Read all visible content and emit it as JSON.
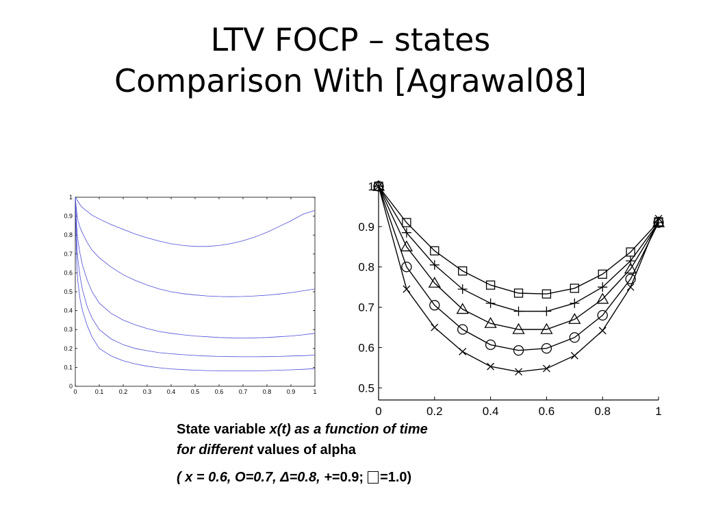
{
  "slide": {
    "title_line1": "LTV FOCP – states",
    "title_line2": "Comparison With [Agrawal08]"
  },
  "caption": {
    "line1_normal": "State variable ",
    "line1_italic": "x(t) as a function of time",
    "line2_italic": "for different",
    "line2_normal": " values of alpha",
    "line3_italic": "( x = 0.6,  O=0.7, Δ=0.8, +",
    "line3_plus_value": "=0.9;",
    "line3_square_value": "=1.0)"
  },
  "chart_data": [
    {
      "type": "line",
      "title": "",
      "xlabel": "",
      "ylabel": "",
      "xlim": [
        0,
        1
      ],
      "ylim": [
        0,
        1
      ],
      "xticks": [
        "0",
        "0.1",
        "0.2",
        "0.3",
        "0.4",
        "0.5",
        "0.6",
        "0.7",
        "0.8",
        "0.9",
        "1"
      ],
      "yticks": [
        "0",
        "0.1",
        "0.2",
        "0.3",
        "0.4",
        "0.5",
        "0.6",
        "0.7",
        "0.8",
        "0.9",
        "1"
      ],
      "grid": false,
      "line_color": "#4a4ad8",
      "x": [
        0,
        0.005,
        0.01,
        0.02,
        0.03,
        0.05,
        0.07,
        0.1,
        0.15,
        0.2,
        0.25,
        0.3,
        0.35,
        0.4,
        0.45,
        0.5,
        0.55,
        0.6,
        0.65,
        0.7,
        0.75,
        0.8,
        0.85,
        0.9,
        0.95,
        1.0
      ],
      "series": [
        {
          "values": [
            1.0,
            0.99,
            0.98,
            0.96,
            0.945,
            0.925,
            0.905,
            0.885,
            0.855,
            0.83,
            0.805,
            0.785,
            0.768,
            0.754,
            0.745,
            0.74,
            0.74,
            0.745,
            0.755,
            0.77,
            0.79,
            0.815,
            0.845,
            0.875,
            0.91,
            0.93
          ]
        },
        {
          "values": [
            1.0,
            0.93,
            0.88,
            0.84,
            0.81,
            0.76,
            0.72,
            0.68,
            0.63,
            0.59,
            0.56,
            0.535,
            0.515,
            0.5,
            0.49,
            0.483,
            0.478,
            0.475,
            0.474,
            0.475,
            0.478,
            0.482,
            0.488,
            0.495,
            0.505,
            0.515
          ]
        },
        {
          "values": [
            1.0,
            0.86,
            0.78,
            0.7,
            0.64,
            0.56,
            0.5,
            0.44,
            0.385,
            0.35,
            0.325,
            0.305,
            0.29,
            0.28,
            0.272,
            0.266,
            0.262,
            0.258,
            0.256,
            0.255,
            0.256,
            0.258,
            0.262,
            0.266,
            0.272,
            0.28
          ]
        },
        {
          "values": [
            1.0,
            0.78,
            0.68,
            0.58,
            0.51,
            0.42,
            0.36,
            0.3,
            0.25,
            0.22,
            0.2,
            0.188,
            0.178,
            0.172,
            0.167,
            0.163,
            0.16,
            0.158,
            0.157,
            0.156,
            0.156,
            0.157,
            0.158,
            0.16,
            0.162,
            0.165
          ]
        },
        {
          "values": [
            1.0,
            0.68,
            0.56,
            0.46,
            0.4,
            0.32,
            0.26,
            0.2,
            0.16,
            0.135,
            0.118,
            0.106,
            0.098,
            0.092,
            0.088,
            0.085,
            0.083,
            0.082,
            0.081,
            0.081,
            0.082,
            0.083,
            0.085,
            0.087,
            0.09,
            0.093
          ]
        }
      ]
    },
    {
      "type": "line",
      "title": "",
      "xlabel": "",
      "ylabel": "",
      "xlim": [
        0,
        1
      ],
      "ylim": [
        0.47,
        1.0
      ],
      "xticks": [
        "0",
        "0.2",
        "0.4",
        "0.6",
        "0.8",
        "1"
      ],
      "yticks": [
        "0.5",
        "0.6",
        "0.7",
        "0.8",
        "0.9",
        "1"
      ],
      "grid": false,
      "x": [
        0,
        0.1,
        0.2,
        0.3,
        0.4,
        0.5,
        0.6,
        0.7,
        0.8,
        0.9,
        1.0
      ],
      "series": [
        {
          "marker": "square",
          "values": [
            1.0,
            0.91,
            0.84,
            0.79,
            0.755,
            0.735,
            0.733,
            0.747,
            0.782,
            0.837,
            0.912
          ]
        },
        {
          "marker": "plus",
          "values": [
            1.0,
            0.885,
            0.805,
            0.745,
            0.71,
            0.69,
            0.69,
            0.71,
            0.75,
            0.815,
            0.91
          ]
        },
        {
          "marker": "triangle",
          "values": [
            1.0,
            0.85,
            0.76,
            0.695,
            0.66,
            0.645,
            0.645,
            0.67,
            0.72,
            0.795,
            0.91
          ]
        },
        {
          "marker": "circle",
          "values": [
            1.0,
            0.8,
            0.705,
            0.645,
            0.607,
            0.593,
            0.598,
            0.625,
            0.68,
            0.77,
            0.91
          ]
        },
        {
          "marker": "x",
          "values": [
            1.0,
            0.745,
            0.65,
            0.59,
            0.553,
            0.54,
            0.548,
            0.58,
            0.642,
            0.75,
            0.92
          ]
        }
      ]
    }
  ]
}
